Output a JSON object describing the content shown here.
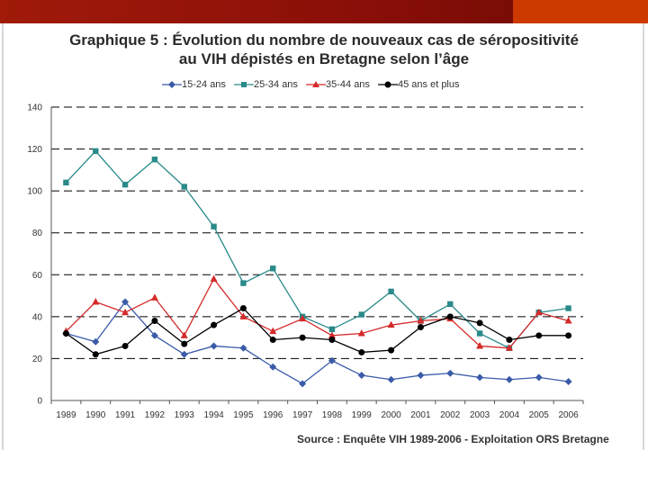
{
  "chart_data": {
    "type": "line",
    "title_line1": "Graphique 5 : Évolution du nombre de nouveaux cas de séropositivité",
    "title_line2": "au VIH dépistés en Bretagne selon l’âge",
    "xlabel": "",
    "ylabel": "",
    "ylim": [
      0,
      140
    ],
    "yticks": [
      0,
      20,
      40,
      60,
      80,
      100,
      120,
      140
    ],
    "grid": "horizontal-dashed",
    "legend_position": "top",
    "categories": [
      "1989",
      "1990",
      "1991",
      "1992",
      "1993",
      "1994",
      "1995",
      "1996",
      "1997",
      "1998",
      "1999",
      "2000",
      "2001",
      "2002",
      "2003",
      "2004",
      "2005",
      "2006"
    ],
    "series": [
      {
        "name": "15-24 ans",
        "color": "#3a5ba8",
        "marker": "diamond",
        "values": [
          32,
          28,
          47,
          31,
          22,
          26,
          25,
          16,
          8,
          19,
          12,
          10,
          12,
          13,
          11,
          10,
          11,
          9
        ]
      },
      {
        "name": "25-34 ans",
        "color": "#2a8a8a",
        "marker": "square",
        "values": [
          104,
          119,
          103,
          115,
          102,
          83,
          56,
          63,
          40,
          34,
          41,
          52,
          38,
          46,
          32,
          25,
          42,
          44
        ]
      },
      {
        "name": "35-44 ans",
        "color": "#d42a2a",
        "marker": "triangle",
        "values": [
          33,
          47,
          42,
          49,
          31,
          58,
          40,
          33,
          39,
          31,
          32,
          36,
          38,
          39,
          26,
          25,
          42,
          38
        ]
      },
      {
        "name": "45 ans et plus",
        "color": "#000000",
        "marker": "circle",
        "values": [
          32,
          22,
          26,
          38,
          27,
          36,
          44,
          29,
          30,
          29,
          23,
          24,
          35,
          40,
          37,
          29,
          31,
          31
        ]
      }
    ]
  },
  "source": "Source : Enquête VIH 1989-2006 - Exploitation ORS Bretagne"
}
